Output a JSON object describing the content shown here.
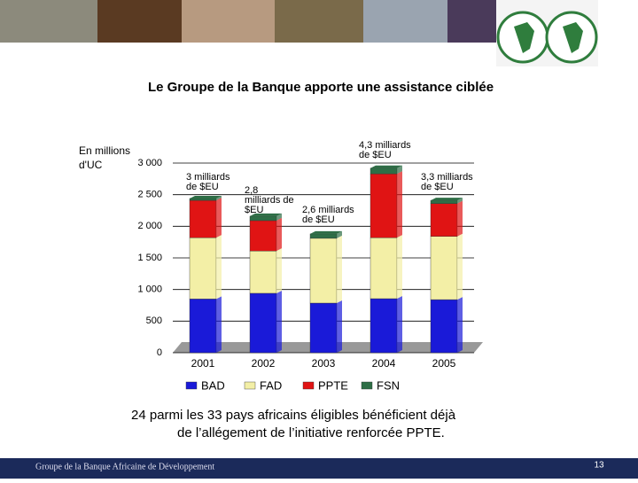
{
  "chart_data": {
    "type": "bar",
    "stacked": true,
    "title": "Le Groupe de la Banque apporte une assistance ciblée",
    "y_label": [
      "En millions",
      "d'UC"
    ],
    "categories": [
      "2001",
      "2002",
      "2003",
      "2004",
      "2005"
    ],
    "series": [
      {
        "name": "BAD",
        "color": "#1a1ad8",
        "values": [
          850,
          940,
          785,
          855,
          840
        ]
      },
      {
        "name": "FAD",
        "color": "#f3efa6",
        "values": [
          970,
          670,
          1025,
          965,
          1000
        ]
      },
      {
        "name": "PPTE",
        "color": "#e01414",
        "values": [
          590,
          480,
          0,
          1010,
          520
        ]
      },
      {
        "name": "FSN",
        "color": "#2e6e46",
        "values": [
          30,
          70,
          70,
          90,
          50
        ]
      }
    ],
    "ylim": [
      0,
      3000
    ],
    "yticks": [
      0,
      500,
      {
        "value": 1000,
        "label": "1 000"
      },
      {
        "value": 1500,
        "label": "1 500"
      },
      {
        "value": 2000,
        "label": "2 000"
      },
      {
        "value": 2500,
        "label": "2 500"
      },
      {
        "value": 3000,
        "label": "3 000"
      }
    ],
    "grid": true,
    "annotations": [
      [
        "3 milliards",
        "de $EU"
      ],
      [
        "2,8",
        "milliards de",
        "$EU"
      ],
      [
        "2,6 milliards",
        "de $EU"
      ],
      [
        "4,3 milliards",
        "de $EU"
      ],
      [
        "3,3 milliards",
        "de $EU"
      ]
    ]
  },
  "caption": [
    "24 parmi les 33 pays africains éligibles bénéficient déjà",
    "de l’allégement de l’initiative renforcée PPTE."
  ],
  "footer": {
    "organization": "Groupe de la Banque Africaine de Développement",
    "page": "13"
  }
}
